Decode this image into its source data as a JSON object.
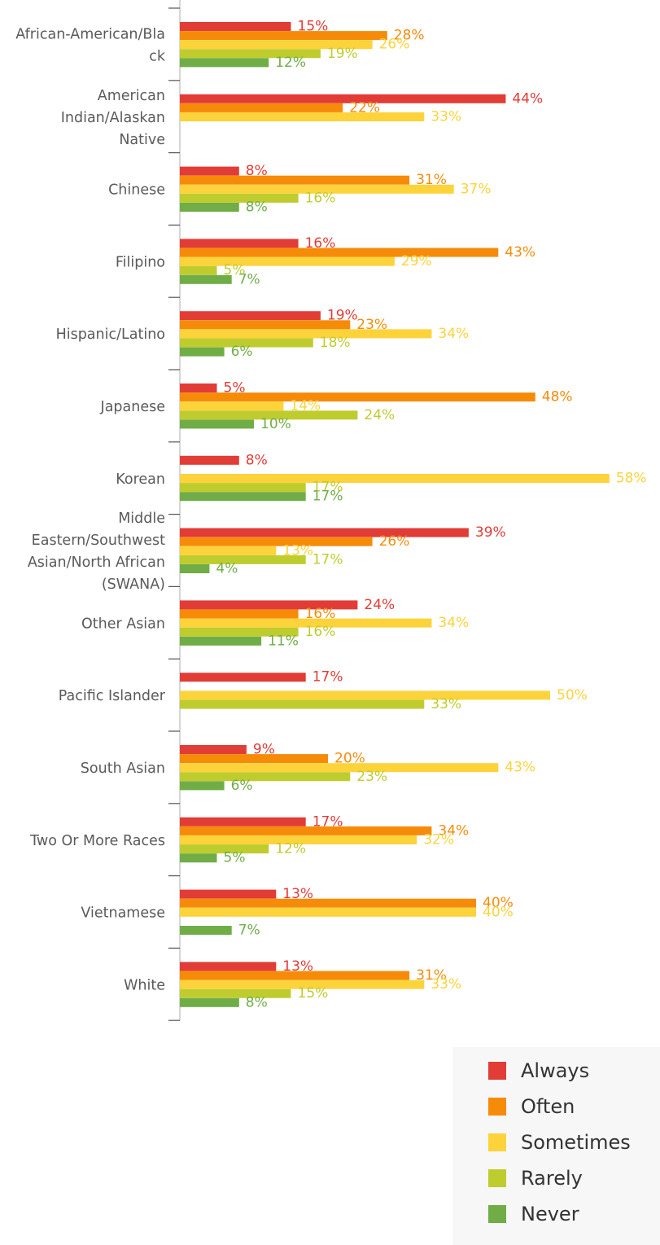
{
  "chart_data": {
    "type": "bar",
    "orientation": "horizontal",
    "categories": [
      "African-American/Black",
      "American Indian/Alaskan Native",
      "Chinese",
      "Filipino",
      "Hispanic/Latino",
      "Japanese",
      "Korean",
      "Middle Eastern/Southwest Asian/North African (SWANA)",
      "Other Asian",
      "Pacific Islander",
      "South Asian",
      "Two Or More Races",
      "Vietnamese",
      "White"
    ],
    "category_label_lines": [
      [
        "African-American/Bla",
        "ck"
      ],
      [
        "American",
        "Indian/Alaskan",
        "Native"
      ],
      [
        "Chinese"
      ],
      [
        "Filipino"
      ],
      [
        "Hispanic/Latino"
      ],
      [
        "Japanese"
      ],
      [
        "Korean"
      ],
      [
        "Middle",
        "Eastern/Southwest",
        "Asian/North African",
        "(SWANA)"
      ],
      [
        "Other Asian"
      ],
      [
        "Pacific Islander"
      ],
      [
        "South Asian"
      ],
      [
        "Two Or More Races"
      ],
      [
        "Vietnamese"
      ],
      [
        "White"
      ]
    ],
    "series": [
      {
        "name": "Always",
        "color": "#e23c37",
        "values": [
          15,
          44,
          8,
          16,
          19,
          5,
          8,
          39,
          24,
          17,
          9,
          17,
          13,
          13
        ]
      },
      {
        "name": "Often",
        "color": "#f68b0a",
        "values": [
          28,
          22,
          31,
          43,
          23,
          48,
          null,
          26,
          16,
          null,
          20,
          34,
          40,
          31
        ]
      },
      {
        "name": "Sometimes",
        "color": "#fcd33a",
        "values": [
          26,
          33,
          37,
          29,
          34,
          14,
          58,
          13,
          34,
          50,
          43,
          32,
          40,
          33
        ]
      },
      {
        "name": "Rarely",
        "color": "#bfcc2e",
        "values": [
          19,
          null,
          16,
          5,
          18,
          24,
          17,
          17,
          16,
          33,
          23,
          12,
          null,
          15
        ]
      },
      {
        "name": "Never",
        "color": "#70ad47",
        "values": [
          12,
          null,
          8,
          7,
          6,
          10,
          17,
          4,
          11,
          null,
          6,
          5,
          7,
          8
        ]
      }
    ],
    "value_suffix": "%",
    "xlim": [
      0,
      60
    ],
    "grid": false,
    "legend_position": "bottom-right"
  },
  "legend": {
    "items": [
      {
        "label": "Always",
        "color": "#e23c37"
      },
      {
        "label": "Often",
        "color": "#f68b0a"
      },
      {
        "label": "Sometimes",
        "color": "#fcd33a"
      },
      {
        "label": "Rarely",
        "color": "#bfcc2e"
      },
      {
        "label": "Never",
        "color": "#70ad47"
      }
    ]
  }
}
